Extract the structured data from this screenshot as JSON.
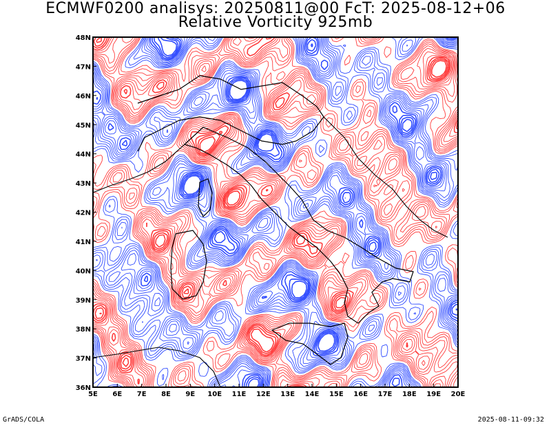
{
  "title": {
    "line1": "ECMWF0200 analisys: 20250811@00 FcT: 2025-08-12+06",
    "line2": "Relative Vorticity 925mb"
  },
  "map": {
    "lon_ticks": [
      "5E",
      "6E",
      "7E",
      "8E",
      "9E",
      "10E",
      "11E",
      "12E",
      "13E",
      "14E",
      "15E",
      "16E",
      "17E",
      "18E",
      "19E",
      "20E"
    ],
    "lat_ticks": [
      "36N",
      "37N",
      "38N",
      "39N",
      "40N",
      "41N",
      "42N",
      "43N",
      "44N",
      "45N",
      "46N",
      "47N",
      "48N"
    ],
    "lon_range": [
      5,
      20
    ],
    "lat_range": [
      36,
      48
    ],
    "colors": {
      "positive": "#ff3b3b",
      "negative": "#2f4bff",
      "coast": "#000000"
    }
  },
  "footer": {
    "left": "GrADS/COLA",
    "right": "2025-08-11-09:32"
  }
}
